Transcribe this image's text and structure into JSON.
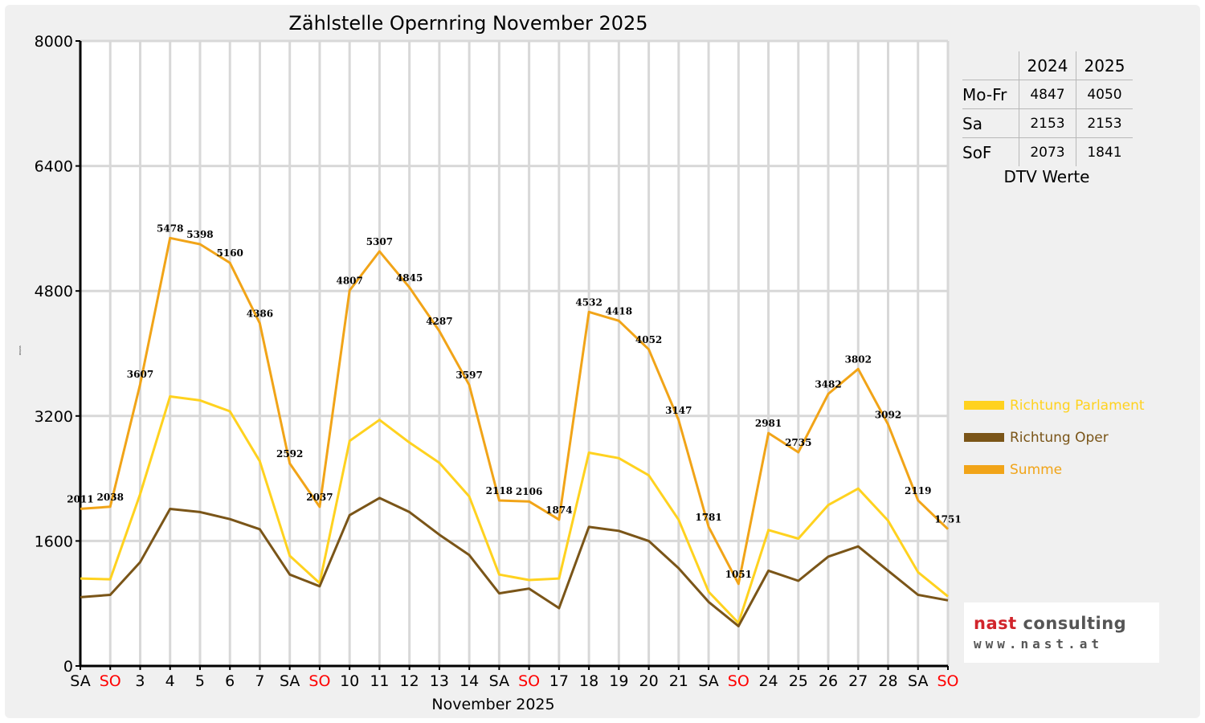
{
  "chart_data": {
    "type": "line",
    "title": "Zählstelle Opernring November 2025",
    "xlabel": "November 2025",
    "ylabel": "Kfz/24h",
    "ylim": [
      0,
      8000
    ],
    "yticks": [
      0,
      1600,
      3200,
      4800,
      6400,
      8000
    ],
    "grid": true,
    "legend_position": "right",
    "categories": [
      "SA",
      "SO",
      "3",
      "4",
      "5",
      "6",
      "7",
      "SA",
      "SO",
      "10",
      "11",
      "12",
      "13",
      "14",
      "SA",
      "SO",
      "17",
      "18",
      "19",
      "20",
      "21",
      "SA",
      "SO",
      "24",
      "25",
      "26",
      "27",
      "28",
      "SA",
      "SO"
    ],
    "weekend_flags": [
      0,
      1,
      0,
      0,
      0,
      0,
      0,
      0,
      1,
      0,
      0,
      0,
      0,
      0,
      0,
      1,
      0,
      0,
      0,
      0,
      0,
      0,
      1,
      0,
      0,
      0,
      0,
      0,
      0,
      1
    ],
    "series": [
      {
        "name": "Richtung Parlament",
        "color": "#ffd21f",
        "values": [
          1120,
          1110,
          2200,
          3450,
          3400,
          3260,
          2620,
          1410,
          1060,
          2880,
          3150,
          2860,
          2600,
          2170,
          1170,
          1100,
          1120,
          2730,
          2660,
          2440,
          1870,
          950,
          550,
          1740,
          1630,
          2060,
          2270,
          1860,
          1200,
          890
        ]
      },
      {
        "name": "Richtung Oper",
        "color": "#7a5518",
        "values": [
          880,
          910,
          1330,
          2010,
          1970,
          1880,
          1750,
          1170,
          1020,
          1930,
          2150,
          1970,
          1680,
          1420,
          930,
          990,
          740,
          1780,
          1730,
          1600,
          1250,
          820,
          510,
          1220,
          1090,
          1400,
          1530,
          1220,
          910,
          840
        ]
      },
      {
        "name": "Summe",
        "color": "#f1a418",
        "values": [
          2011,
          2038,
          3607,
          5478,
          5398,
          5160,
          4386,
          2592,
          2037,
          4807,
          5307,
          4845,
          4287,
          3597,
          2118,
          2106,
          1874,
          4532,
          4418,
          4052,
          3147,
          1781,
          1051,
          2981,
          2735,
          3482,
          3802,
          3092,
          2119,
          1751
        ],
        "labels": [
          "2011",
          "2038",
          "3607",
          "5478",
          "5398",
          "5160",
          "4386",
          "2592",
          "2037",
          "4807",
          "5307",
          "4845",
          "4287",
          "3597",
          "2118",
          "2106",
          "1874",
          "4532",
          "4418",
          "4052",
          "3147",
          "1781",
          "1051",
          "2981",
          "2735",
          "3482",
          "3802",
          "3092",
          "2119",
          "1751"
        ]
      }
    ]
  },
  "dtv_table": {
    "header": [
      "2024",
      "2025"
    ],
    "rows": [
      {
        "label": "Mo-Fr",
        "v2024": "4847",
        "v2025": "4050"
      },
      {
        "label": "Sa",
        "v2024": "2153",
        "v2025": "2153"
      },
      {
        "label": "SoF",
        "v2024": "2073",
        "v2025": "1841"
      }
    ],
    "caption": "DTV Werte"
  },
  "legend": [
    "Richtung Parlament",
    "Richtung Oper",
    "Summe"
  ],
  "logo": {
    "name_part1": "nast",
    "name_part2": " consulting",
    "url": "www.nast.at"
  },
  "colors": {
    "weekend_label": "#ff0000",
    "weekday_label": "#000000",
    "grid": "#d8d8d8",
    "plot_bg": "#ffffff",
    "frame_bg": "#f0f0f0"
  }
}
